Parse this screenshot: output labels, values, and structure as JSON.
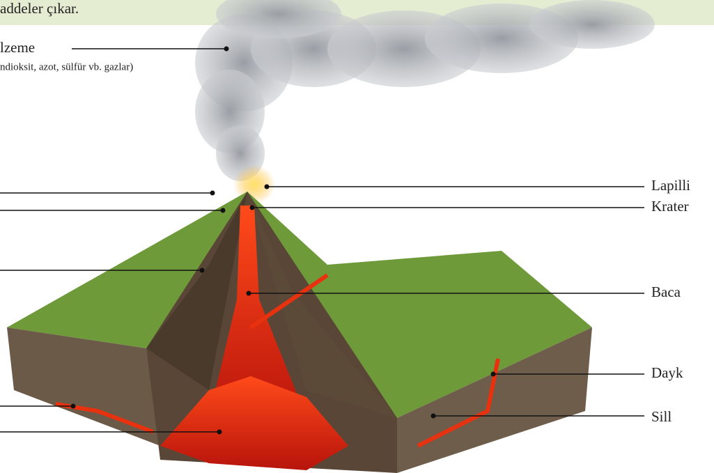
{
  "header": {
    "text": "addeler çıkar."
  },
  "left_labels": [
    {
      "label": "lzeme",
      "sublabel": "ndioksit, azot, sülfür vb. gazlar)"
    }
  ],
  "right_labels": [
    "Lapilli",
    "Krater",
    "Baca",
    "Dayk",
    "Sill"
  ]
}
